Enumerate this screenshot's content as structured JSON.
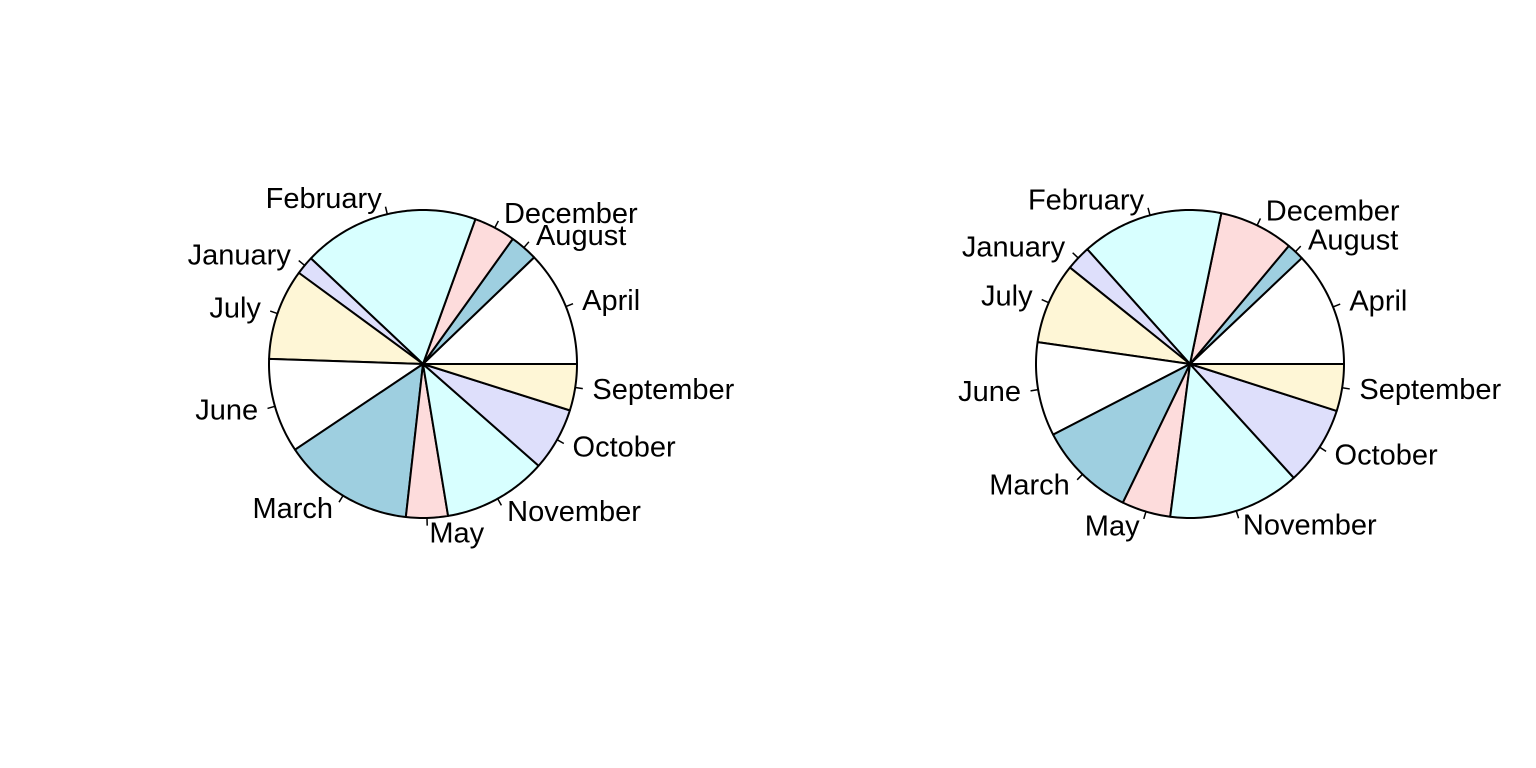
{
  "chart_data": [
    {
      "type": "pie",
      "labels": [
        "April",
        "August",
        "December",
        "February",
        "January",
        "July",
        "June",
        "March",
        "May",
        "November",
        "October",
        "September"
      ],
      "values": [
        12.5,
        3.0,
        4.5,
        19.0,
        2.0,
        9.8,
        10.2,
        14.2,
        4.5,
        11.2,
        6.8,
        5.0
      ],
      "colors": [
        "#ffffff",
        "#9ecfe0",
        "#fddcdc",
        "#d8ffff",
        "#dedffb",
        "#fef6d6",
        "#ffffff",
        "#9ecfe0",
        "#fddcdc",
        "#d8ffff",
        "#dedffb",
        "#fef6d6"
      ],
      "direction": "counterclockwise",
      "start": "3 o'clock",
      "title": ""
    },
    {
      "type": "pie",
      "labels": [
        "April",
        "August",
        "December",
        "February",
        "January",
        "July",
        "June",
        "March",
        "May",
        "November",
        "October",
        "September"
      ],
      "values": [
        12.5,
        1.9,
        8.1,
        15.4,
        2.7,
        8.8,
        10.2,
        10.6,
        5.3,
        14.3,
        8.6,
        5.1
      ],
      "colors": [
        "#ffffff",
        "#9ecfe0",
        "#fddcdc",
        "#d8ffff",
        "#dedffb",
        "#fef6d6",
        "#ffffff",
        "#9ecfe0",
        "#fddcdc",
        "#d8ffff",
        "#dedffb",
        "#fef6d6"
      ],
      "direction": "counterclockwise",
      "start": "3 o'clock",
      "title": ""
    }
  ]
}
